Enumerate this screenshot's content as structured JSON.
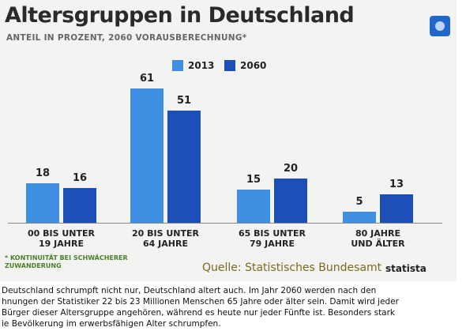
{
  "chart_data": {
    "type": "bar",
    "title": "Altersgruppen in Deutschland",
    "subtitle": "ANTEIL IN PROZENT, 2060 VORAUSBERECHNUNG*",
    "categories": [
      "00 BIS UNTER 19 JAHRE",
      "20 BIS UNTER 64 JAHRE",
      "65 BIS UNTER 79 JAHRE",
      "80 JAHRE UND ÄLTER"
    ],
    "series": [
      {
        "name": "2013",
        "color": "#3f8fe2",
        "values": [
          18,
          61,
          15,
          5
        ]
      },
      {
        "name": "2060",
        "color": "#1d4fb8",
        "values": [
          16,
          51,
          20,
          13
        ]
      }
    ],
    "footnote": "* KONTINUITÄT BEI SCHWÄCHERER ZUWANDERUNG",
    "source": "Quelle: Statistisches Bundesamt",
    "brand": "statista"
  },
  "article": {
    "lines": [
      "Deutschland schrumpft nicht nur, Deutschland altert auch. Im Jahr 2060 werden nach den",
      "hnungen der Statistiker 22 bis 23 Millionen Menschen 65 Jahre oder älter sein. Damit wird jeder",
      "Bürger dieser Altersgruppe angehören, während es heute nur jeder Fünfte ist. Besonders stark",
      "ie Bevölkerung im erwerbsfähigen Alter schrumpfen."
    ]
  }
}
